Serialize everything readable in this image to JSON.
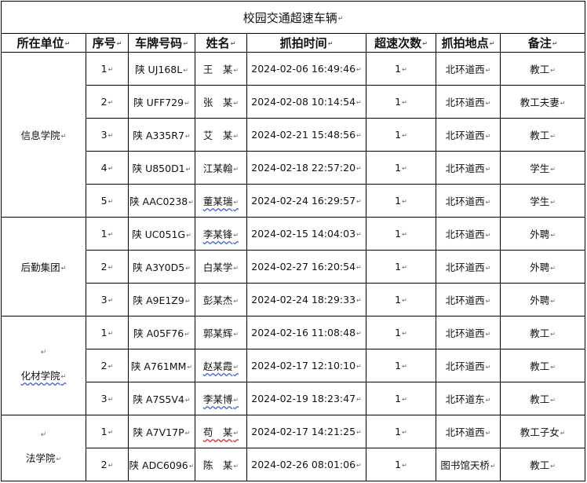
{
  "title": "校园交通超速车辆",
  "columns": [
    "所在单位",
    "序号",
    "车牌号码",
    "姓名",
    "抓拍时间",
    "超速次数",
    "抓拍地点",
    "备注"
  ],
  "groups": [
    {
      "unit": "信息学院",
      "blank_line_above": false,
      "unit_underline": false,
      "rows": [
        {
          "no": "1",
          "plate": "陕 UJ168L",
          "name": "王　某",
          "time": "2024-02-06 16:49:46",
          "count": "1",
          "location": "北环道西",
          "note": "教工",
          "name_underline": ""
        },
        {
          "no": "2",
          "plate": "陕 UFF729",
          "name": "张　某",
          "time": "2024-02-08 10:14:54",
          "count": "1",
          "location": "北环道西",
          "note": "教工夫妻",
          "name_underline": ""
        },
        {
          "no": "3",
          "plate": "陕 A335R7",
          "name": "艾　某",
          "time": "2024-02-21 15:48:56",
          "count": "1",
          "location": "北环道西",
          "note": "教工",
          "name_underline": ""
        },
        {
          "no": "4",
          "plate": "陕 U850D1",
          "name": "江某翰",
          "time": "2024-02-18 22:57:20",
          "count": "1",
          "location": "北环道西",
          "note": "学生",
          "name_underline": ""
        },
        {
          "no": "5",
          "plate": "陕 AAC0238",
          "name": "董某瑞",
          "time": "2024-02-24 16:29:57",
          "count": "1",
          "location": "北环道西",
          "note": "学生",
          "name_underline": "blue"
        }
      ]
    },
    {
      "unit": "后勤集团",
      "blank_line_above": false,
      "unit_underline": false,
      "rows": [
        {
          "no": "1",
          "plate": "陕 UC051G",
          "name": "李某锋",
          "time": "2024-02-15 14:04:03",
          "count": "1",
          "location": "北环道西",
          "note": "外聘",
          "name_underline": "blue"
        },
        {
          "no": "2",
          "plate": "陕 A3Y0D5",
          "name": "白某学",
          "time": "2024-02-27 16:20:54",
          "count": "1",
          "location": "北环道西",
          "note": "外聘",
          "name_underline": ""
        },
        {
          "no": "3",
          "plate": "陕 A9E1Z9",
          "name": "彭某杰",
          "time": "2024-02-24 18:29:33",
          "count": "1",
          "location": "北环道西",
          "note": "外聘",
          "name_underline": ""
        }
      ]
    },
    {
      "unit": "化材学院",
      "blank_line_above": true,
      "unit_underline": true,
      "rows": [
        {
          "no": "1",
          "plate": "陕 A05F76",
          "name": "郭某辉",
          "time": "2024-02-16 11:08:48",
          "count": "1",
          "location": "北环道西",
          "note": "教工",
          "name_underline": ""
        },
        {
          "no": "2",
          "plate": "陕 A761MM",
          "name": "赵某霞",
          "time": "2024-02-17 12:10:10",
          "count": "1",
          "location": "北环道西",
          "note": "教工",
          "name_underline": "blue"
        },
        {
          "no": "3",
          "plate": "陕 A7S5V4",
          "name": "李某博",
          "time": "2024-02-19 18:23:47",
          "count": "1",
          "location": "北环道东",
          "note": "教工",
          "name_underline": "blue"
        }
      ]
    },
    {
      "unit": "法学院",
      "blank_line_above": true,
      "unit_underline": false,
      "rows": [
        {
          "no": "1",
          "plate": "陕 A7V17P",
          "name": "苟　某",
          "time": "2024-02-17 14:21:25",
          "count": "1",
          "location": "北环道西",
          "note": "教工子女",
          "name_underline": "red"
        },
        {
          "no": "2",
          "plate": "陕 ADC6096",
          "name": "陈　某",
          "time": "2024-02-26 08:01:06",
          "count": "1",
          "location": "图书馆天桥",
          "note": "教工",
          "name_underline": ""
        }
      ]
    }
  ]
}
